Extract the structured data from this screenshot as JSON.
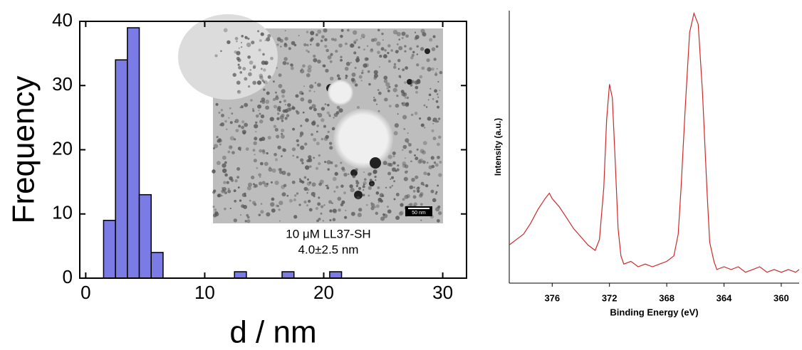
{
  "chart_data": [
    {
      "type": "histogram",
      "x_label": "d / nm",
      "y_label": "Frequency",
      "bins": [
        1.5,
        2.5,
        3.5,
        4.5,
        5.5,
        6.5,
        7.5,
        8.5,
        9.5,
        10.5,
        11.5,
        12.5,
        13.5,
        14.5,
        15.5,
        16.5,
        17.5,
        18.5,
        19.5,
        20.5,
        21.5
      ],
      "values": [
        9,
        34,
        39,
        13,
        4,
        0,
        0,
        0,
        0,
        0,
        0,
        1,
        0,
        0,
        0,
        1,
        0,
        0,
        0,
        1
      ],
      "color": "#7b7be6",
      "xlim": [
        -0.5,
        32
      ],
      "ylim": [
        0,
        40
      ],
      "xticks": [
        0,
        10,
        20,
        30
      ],
      "yticks": [
        0,
        10,
        20,
        30,
        40
      ],
      "inset_caption": [
        "10 μM LL37-SH",
        "4.0±2.5 nm"
      ],
      "scale_bar_label": "50 nm"
    },
    {
      "type": "line",
      "x_label": "Binding Energy (eV)",
      "y_label": "Intensity (a.u.)",
      "x": [
        379,
        378.5,
        378,
        377.5,
        377,
        376.5,
        376.2,
        376,
        375.5,
        375,
        374.5,
        374,
        373.5,
        373,
        372.7,
        372.4,
        372.2,
        372.0,
        371.8,
        371.6,
        371.4,
        371.2,
        371,
        370.5,
        370,
        369.5,
        369,
        368.5,
        368,
        367.5,
        367.2,
        367.0,
        366.7,
        366.4,
        366.1,
        365.8,
        365.5,
        365.2,
        365,
        364.7,
        364.5,
        364,
        363.5,
        363,
        362.5,
        362,
        361.5,
        361,
        360.5,
        360,
        359.5,
        359,
        358.75
      ],
      "values": [
        14,
        16,
        18,
        22,
        27,
        31,
        33,
        31,
        28,
        24,
        20,
        17,
        14,
        12,
        16,
        35,
        60,
        73,
        68,
        45,
        20,
        10,
        7,
        8,
        6,
        7,
        6,
        7,
        8,
        10,
        18,
        35,
        65,
        92,
        99,
        95,
        70,
        35,
        15,
        8,
        5,
        6,
        5,
        6,
        4,
        5,
        6,
        4,
        5,
        4,
        5,
        4,
        5
      ],
      "color": "#cc2a2a",
      "xlim": [
        379,
        358.75
      ],
      "ylim": [
        0,
        100
      ],
      "xticks": [
        376,
        372,
        368,
        364,
        360
      ]
    }
  ]
}
